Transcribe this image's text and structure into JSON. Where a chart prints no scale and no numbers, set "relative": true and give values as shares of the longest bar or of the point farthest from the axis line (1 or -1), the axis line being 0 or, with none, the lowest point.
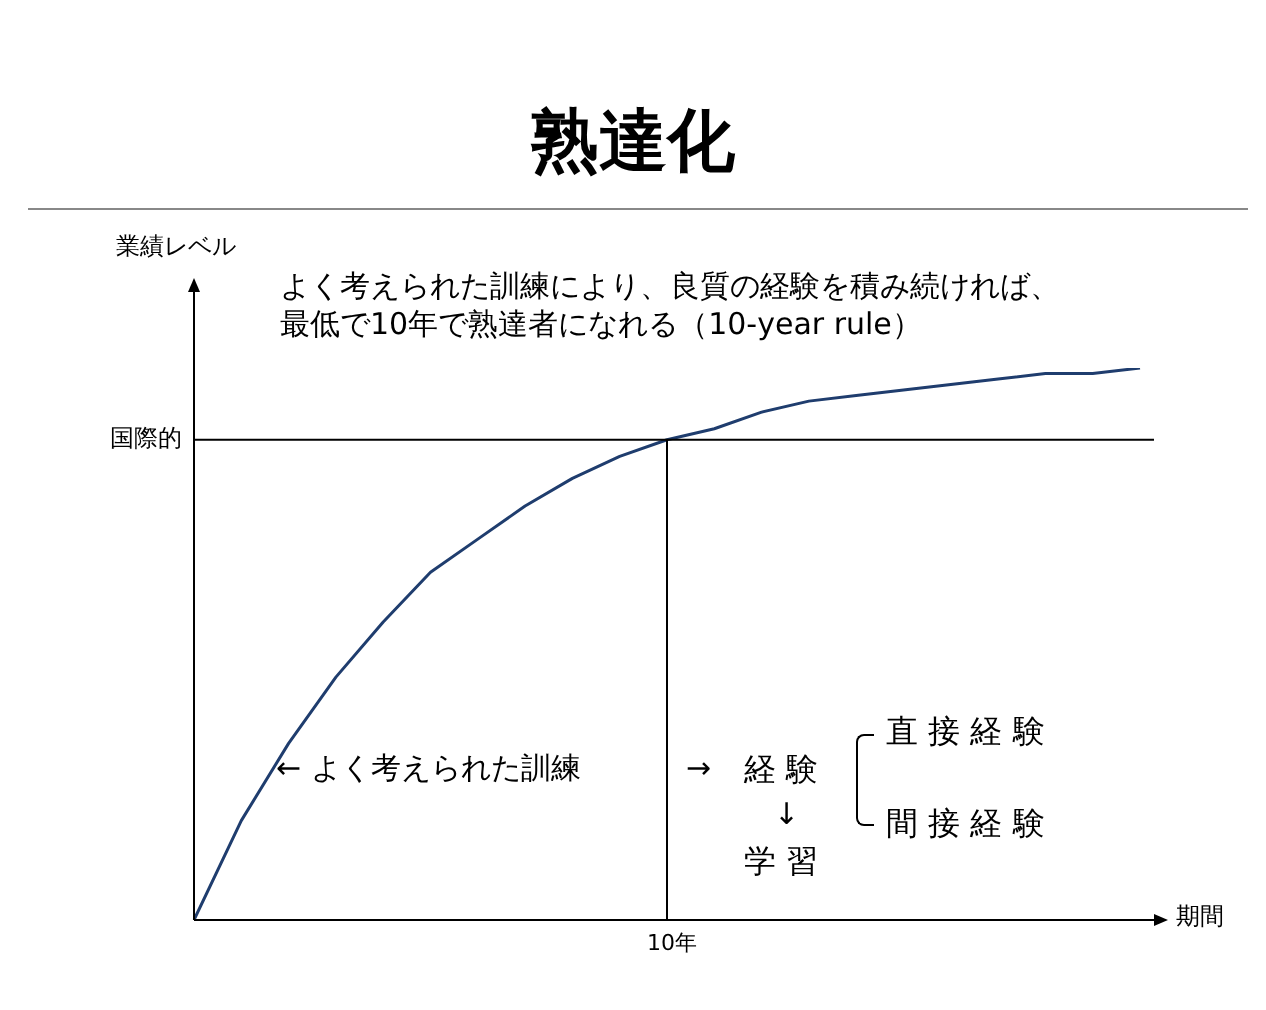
{
  "chart_data": {
    "type": "line",
    "title": "熟達化",
    "xlabel": "期間",
    "ylabel": "業績レベル",
    "relative": true,
    "categories": [
      null,
      null,
      null,
      null,
      null,
      null,
      null,
      null,
      null,
      null,
      null,
      null,
      null,
      null,
      null,
      null,
      null,
      null,
      null,
      null,
      null
    ],
    "series": [
      {
        "color": "#1f3d6e",
        "values": [
          0,
          0.18,
          0.32,
          0.44,
          0.54,
          0.63,
          0.69,
          0.75,
          0.8,
          0.84,
          0.87,
          0.89,
          0.92,
          0.94,
          0.95,
          0.96,
          0.97,
          0.98,
          0.99,
          0.99,
          1
        ]
      }
    ],
    "ref_lines": [
      {
        "axis": "y",
        "value": 0.87,
        "label": "国際的",
        "color": "#000000"
      }
    ],
    "annotations": [
      "よく考えられた訓練により、良質の経験を積み続ければ、",
      "最低で10年で熟達者になれる（10-year rule）",
      "10年",
      "← よく考えられた訓練",
      "→",
      "経 験",
      "↓",
      "学 習",
      "直 接 経 験",
      "間 接 経 験"
    ],
    "legend": false,
    "marker": "none",
    "line_style": "solid"
  }
}
